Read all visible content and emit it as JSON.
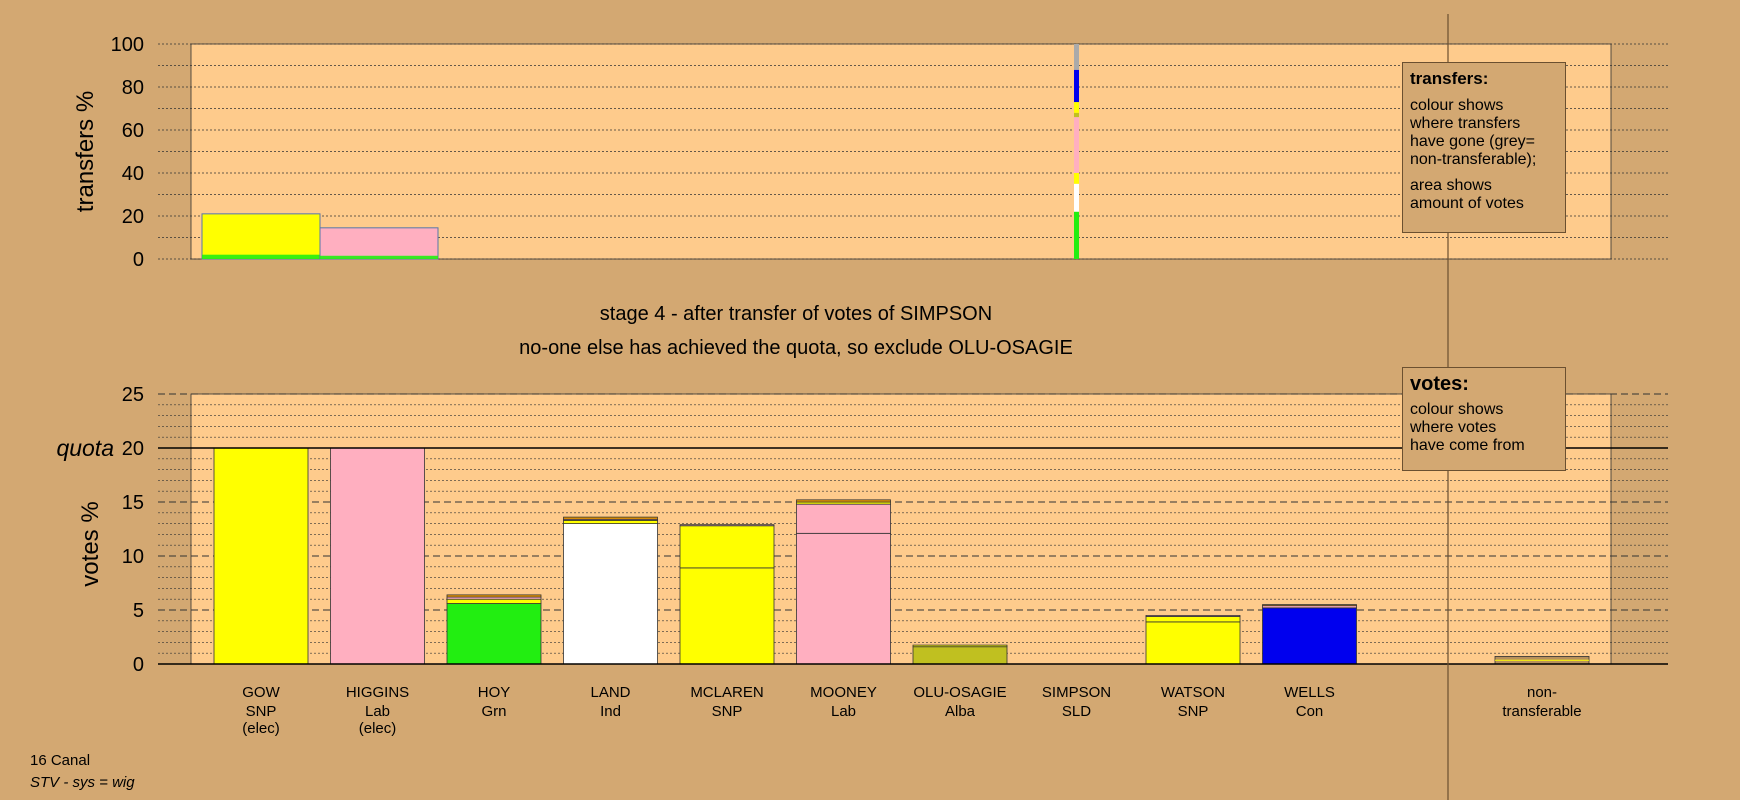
{
  "stage_text": "stage 4 - after transfer of votes of SIMPSON",
  "action_text": "no-one else has achieved the quota, so exclude OLU-OSAGIE",
  "footer": {
    "ward": "16 Canal",
    "system": "STV - sys = wig"
  },
  "legend_transfers": {
    "title": "transfers:",
    "line1": "colour shows\nwhere transfers\nhave gone (grey=\nnon-transferable);",
    "line2": "area shows\namount of votes"
  },
  "legend_votes": {
    "title": "votes:",
    "line1": "colour shows\nwhere votes\nhave come from"
  },
  "colors": {
    "background": "#d3a872",
    "plot_area": "#fecb8c",
    "SNP": "#ffff00",
    "Lab": "#ffafc0",
    "Grn": "#22ee11",
    "Ind": "#ffffff",
    "Alba": "#c0c020",
    "Con": "#0000ee",
    "SLD": "#ee9900",
    "non_transferable": "#aaaaaa"
  },
  "chart_data": [
    {
      "type": "bar",
      "id": "transfers",
      "ylabel": "transfers %",
      "ylim": [
        0,
        100
      ],
      "yticks": [
        0,
        20,
        40,
        60,
        80,
        100
      ],
      "grid": true,
      "stacked_bar": {
        "candidate": "SIMPSON",
        "segments": [
          {
            "to": "HOY",
            "color": "#22ee11",
            "from": 0,
            "to_pct": 22
          },
          {
            "to": "LAND",
            "color": "#ffffff",
            "from": 22,
            "to_pct": 35
          },
          {
            "to": "WATSON",
            "color": "#ffff00",
            "from": 35,
            "to_pct": 40
          },
          {
            "to": "MOONEY",
            "color": "#ffafc0",
            "from": 40,
            "to_pct": 66
          },
          {
            "to": "OLU-OSAGIE",
            "color": "#c0c020",
            "from": 66,
            "to_pct": 68
          },
          {
            "to": "MCLAREN",
            "color": "#ffff00",
            "from": 68,
            "to_pct": 73
          },
          {
            "to": "WELLS",
            "color": "#0000ee",
            "from": 73,
            "to_pct": 88
          },
          {
            "to": "non-transferable",
            "color": "#aaaaaa",
            "from": 88,
            "to_pct": 100
          }
        ]
      },
      "surplus_bars": [
        {
          "candidate": "GOW",
          "color": "#ffff00",
          "value": 21,
          "green_base": 2
        },
        {
          "candidate": "HIGGINS",
          "color": "#ffafc0",
          "value": 14.5,
          "green_base": 1.5
        }
      ]
    },
    {
      "type": "bar",
      "id": "votes",
      "ylabel": "votes %",
      "ylim": [
        0,
        25
      ],
      "yticks": [
        0,
        5,
        10,
        15,
        20,
        25
      ],
      "quota": 20,
      "quota_label": "quota",
      "grid": true,
      "candidates": [
        {
          "name": "GOW",
          "party": "SNP",
          "status": "(elec)",
          "segments": [
            {
              "value": 20,
              "color": "#ffff00"
            }
          ]
        },
        {
          "name": "HIGGINS",
          "party": "Lab",
          "status": "(elec)",
          "segments": [
            {
              "value": 20,
              "color": "#ffafc0"
            }
          ]
        },
        {
          "name": "HOY",
          "party": "Grn",
          "status": "",
          "segments": [
            {
              "value": 5.6,
              "color": "#22ee11"
            },
            {
              "value": 0.4,
              "color": "#ffff00"
            },
            {
              "value": 0.2,
              "color": "#ffafc0"
            },
            {
              "value": 0.2,
              "color": "#ee9900"
            }
          ]
        },
        {
          "name": "LAND",
          "party": "Ind",
          "status": "",
          "segments": [
            {
              "value": 13.0,
              "color": "#ffffff"
            },
            {
              "value": 0.3,
              "color": "#ffff00"
            },
            {
              "value": 0.1,
              "color": "#ffafc0"
            },
            {
              "value": 0.2,
              "color": "#ee9900"
            }
          ]
        },
        {
          "name": "MCLAREN",
          "party": "SNP",
          "status": "",
          "segments": [
            {
              "value": 8.9,
              "color": "#ffff00"
            },
            {
              "value": 3.9,
              "color": "#ffff00"
            },
            {
              "value": 0.1,
              "color": "#ffafc0"
            }
          ]
        },
        {
          "name": "MOONEY",
          "party": "Lab",
          "status": "",
          "segments": [
            {
              "value": 12.1,
              "color": "#ffafc0"
            },
            {
              "value": 2.7,
              "color": "#ffafc0"
            },
            {
              "value": 0.2,
              "color": "#ffff00"
            },
            {
              "value": 0.2,
              "color": "#ee9900"
            }
          ]
        },
        {
          "name": "OLU-OSAGIE",
          "party": "Alba",
          "status": "",
          "segments": [
            {
              "value": 1.6,
              "color": "#c0c020"
            },
            {
              "value": 0.15,
              "color": "#ffff00"
            }
          ]
        },
        {
          "name": "SIMPSON",
          "party": "SLD",
          "status": "",
          "segments": []
        },
        {
          "name": "WATSON",
          "party": "SNP",
          "status": "",
          "segments": [
            {
              "value": 3.9,
              "color": "#ffff00"
            },
            {
              "value": 0.5,
              "color": "#ffff00"
            },
            {
              "value": 0.1,
              "color": "#ffafc0"
            }
          ]
        },
        {
          "name": "WELLS",
          "party": "Con",
          "status": "",
          "segments": [
            {
              "value": 5.2,
              "color": "#0000ee"
            },
            {
              "value": 0.2,
              "color": "#ffafc0"
            },
            {
              "value": 0.1,
              "color": "#ee9900"
            }
          ]
        }
      ],
      "non_transferable": {
        "label_line1": "non-",
        "label_line2": "transferable",
        "value": 0.7
      }
    }
  ]
}
